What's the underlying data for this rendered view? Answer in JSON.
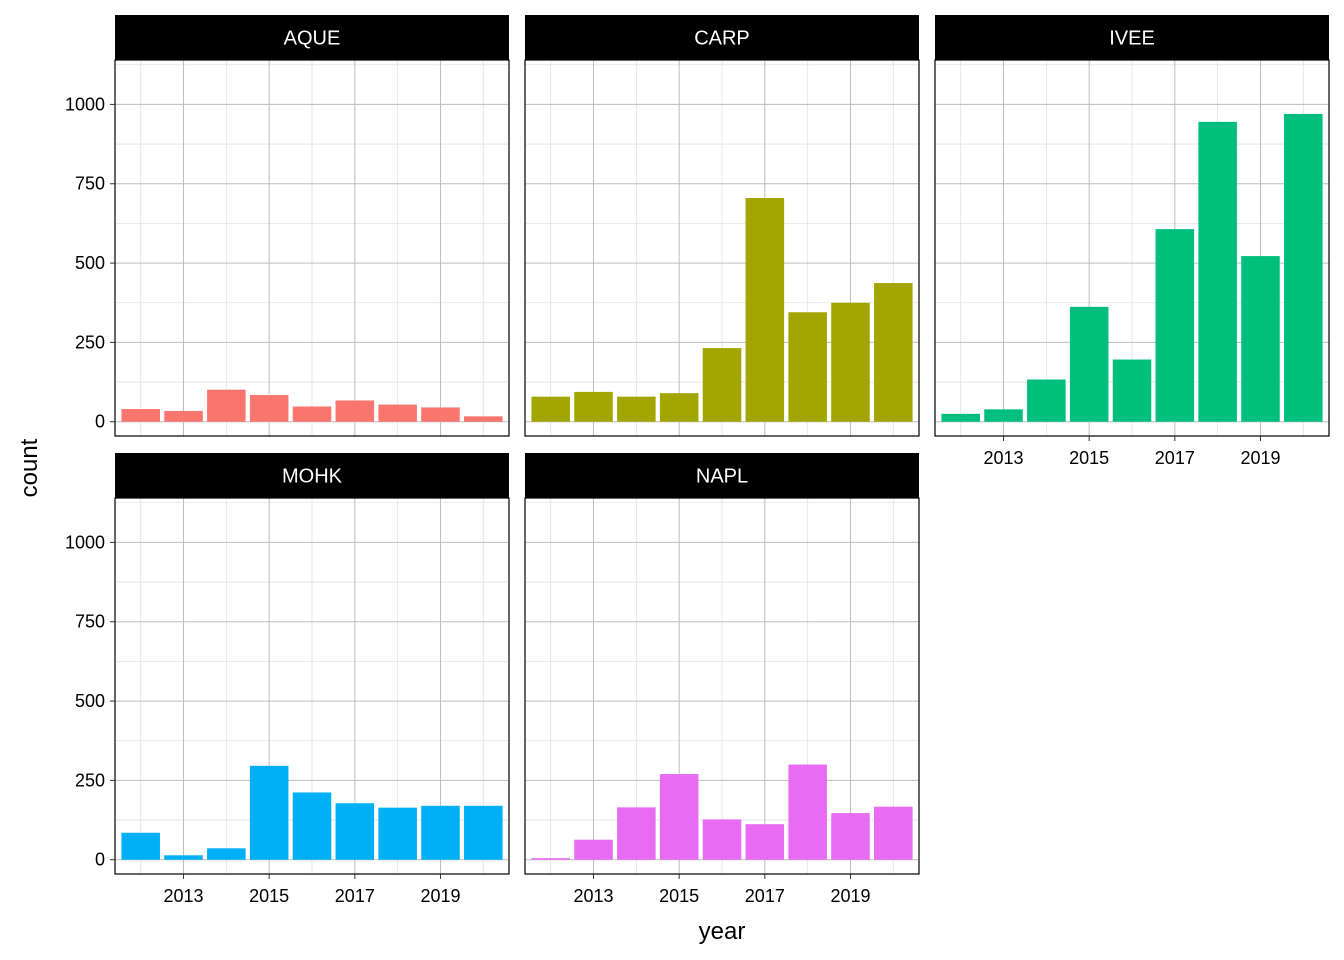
{
  "chart_data": {
    "type": "bar",
    "facet_by": "site",
    "xlabel": "year",
    "ylabel": "count",
    "x": [
      2012,
      2013,
      2014,
      2015,
      2016,
      2017,
      2018,
      2019,
      2020
    ],
    "x_ticks": [
      2013,
      2015,
      2017,
      2019
    ],
    "y_ticks": [
      0,
      250,
      500,
      750,
      1000
    ],
    "ylim": [
      -45,
      1140
    ],
    "xlim": [
      2011.4,
      2020.6
    ],
    "grid": true,
    "legend": "none",
    "panels": [
      {
        "name": "AQUE",
        "color": "#F8766D",
        "values": [
          40,
          34,
          101,
          84,
          48,
          67,
          54,
          45,
          17
        ]
      },
      {
        "name": "CARP",
        "color": "#A3A500",
        "values": [
          79,
          94,
          79,
          90,
          232,
          705,
          345,
          375,
          437
        ]
      },
      {
        "name": "IVEE",
        "color": "#00BF7D",
        "values": [
          25,
          39,
          133,
          362,
          196,
          607,
          945,
          522,
          970
        ]
      },
      {
        "name": "MOHK",
        "color": "#00B0F6",
        "values": [
          85,
          14,
          36,
          296,
          212,
          178,
          164,
          170,
          170
        ]
      },
      {
        "name": "NAPL",
        "color": "#E76BF3",
        "values": [
          5,
          63,
          165,
          270,
          127,
          112,
          300,
          147,
          167
        ]
      }
    ]
  }
}
